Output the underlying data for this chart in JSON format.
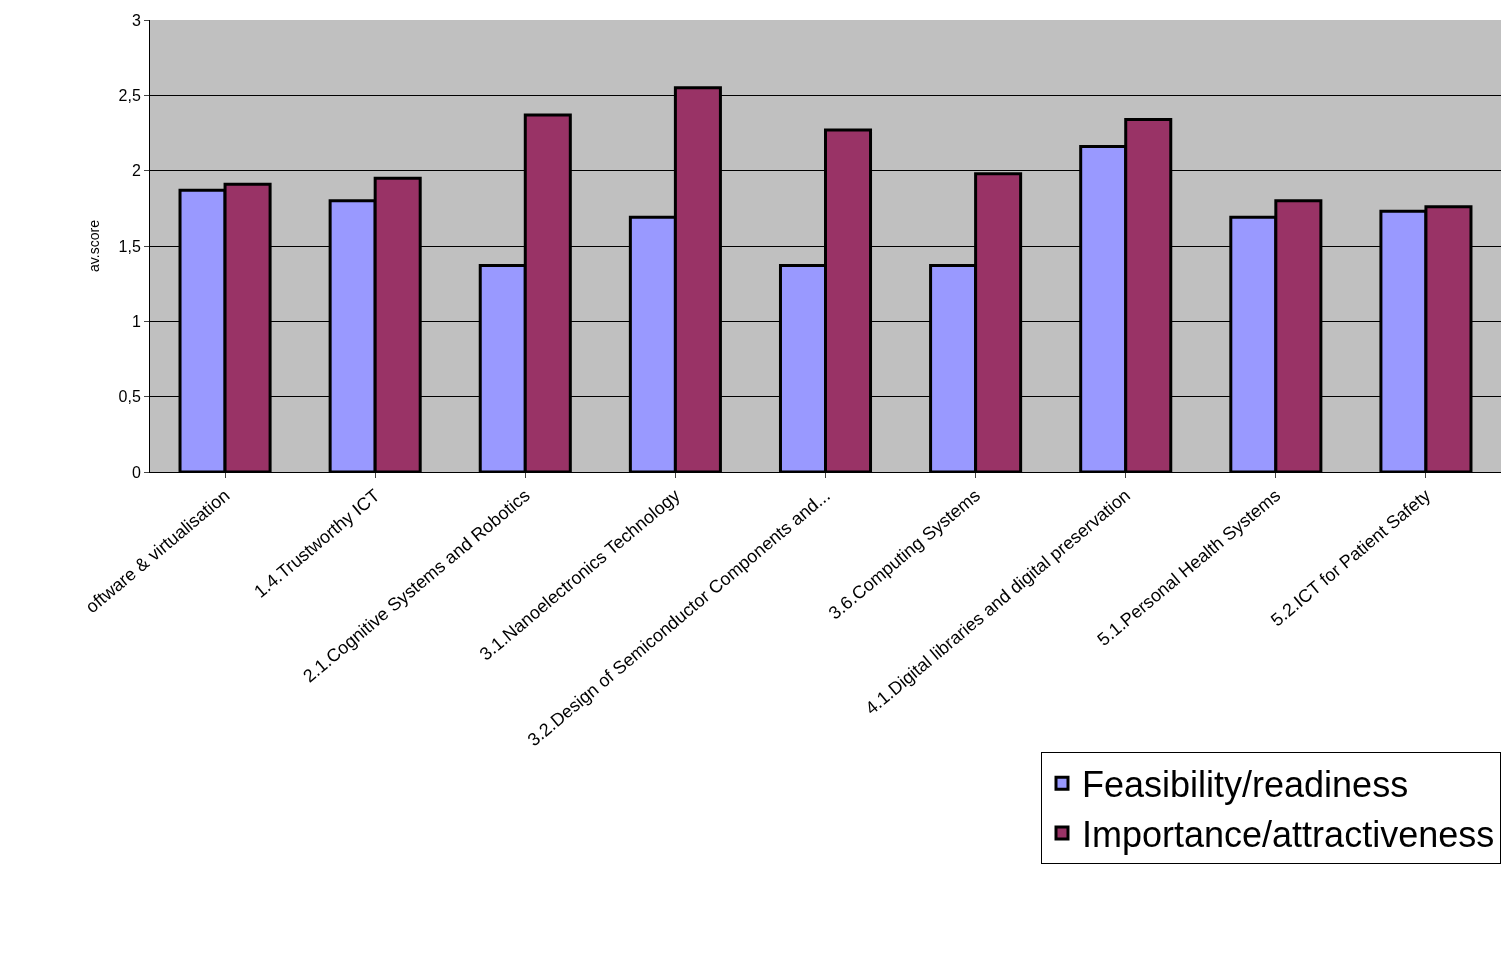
{
  "chart_data": {
    "type": "bar",
    "ylabel": "av.score",
    "categories": [
      "oftware & virtualisation",
      "1.4.Trustworthy ICT",
      "2.1.Cognitive Systems and Robotics",
      "3.1.Nanoelectronics Technology",
      "3.2.Design of Semiconductor Components and...",
      "3.6.Computing Systems",
      "4.1.Digital libraries and digital preservation",
      "5.1.Personal Health Systems",
      "5.2.ICT for Patient Safety"
    ],
    "series": [
      {
        "name": "Feasibility/readiness",
        "color": "#9999ff",
        "values": [
          1.87,
          1.8,
          1.37,
          1.69,
          1.37,
          1.37,
          2.16,
          1.69,
          1.73
        ]
      },
      {
        "name": "Importance/attractiveness",
        "color": "#993366",
        "values": [
          1.91,
          1.95,
          2.37,
          2.55,
          2.27,
          1.98,
          2.34,
          1.8,
          1.76
        ]
      }
    ],
    "ylim": [
      0,
      3
    ],
    "yticks": [
      0,
      {
        "value": 0.5,
        "label": "0,5"
      },
      1,
      {
        "value": 1.5,
        "label": "1,5"
      },
      2,
      {
        "value": 2.5,
        "label": "2,5"
      },
      3
    ],
    "grid": "y",
    "legend": "bottom right"
  }
}
